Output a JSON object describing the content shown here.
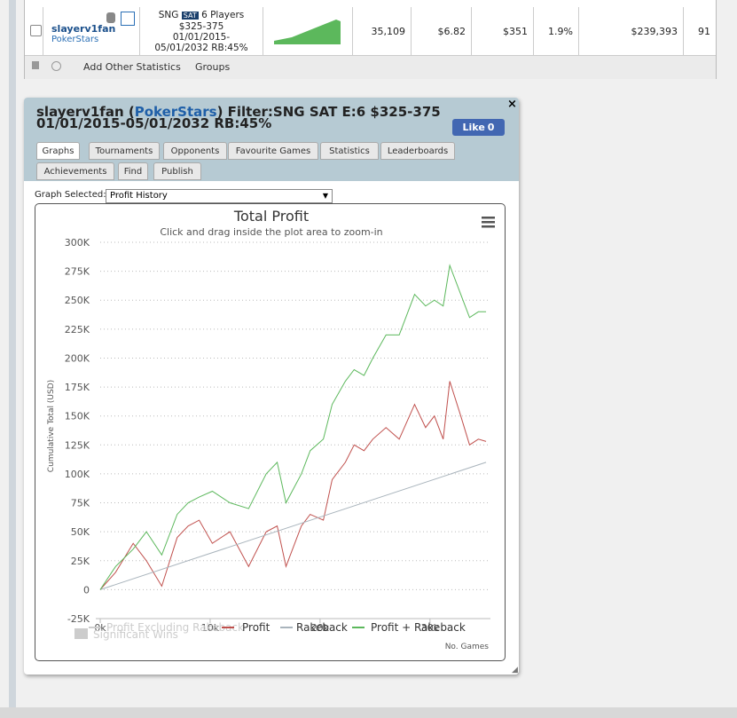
{
  "table": {
    "player": "slayerv1fan",
    "site": "PokerStars",
    "game": "SNG",
    "badge": "SAT",
    "players": "6 Players",
    "stakes": "$325-375",
    "dates": [
      "01/01/2015-",
      "05/01/2032 RB:45%"
    ],
    "cells": [
      "35,109",
      "$6.82",
      "$351",
      "1.9%",
      "$239,393",
      "91"
    ],
    "footer": [
      "Add Other Statistics",
      "Groups"
    ]
  },
  "panel": {
    "heading": [
      "slayerv1fan (",
      "PokerStars",
      ") Filter:SNG SAT E:6 $325-375 01/01/2015-05/01/2032 RB:45%"
    ],
    "like": "Like",
    "like_count": "0",
    "tabs": [
      "Graphs",
      "Tournaments",
      "Opponents",
      "Favourite Games",
      "Statistics",
      "Leaderboards",
      "Achievements",
      "Find",
      "Publish"
    ],
    "graph_label": "Graph Selected:",
    "graph_selected": "Profit History"
  },
  "chart_data": {
    "type": "line",
    "title": "Total Profit",
    "subtitle": "Click and drag inside the plot area to zoom-in",
    "y_label": "Cumulative Total (USD)",
    "x_label": "No. Games",
    "xlim": [
      0,
      35500
    ],
    "ylim": [
      -25000,
      300000
    ],
    "xticks": [
      {
        "value": 0,
        "label": "0k"
      },
      {
        "value": 10000,
        "label": "10k"
      },
      {
        "value": 20000,
        "label": "20k"
      },
      {
        "value": 30000,
        "label": "30k"
      }
    ],
    "yticks": [
      {
        "value": -25000,
        "label": "-25K"
      },
      0,
      {
        "value": 25000,
        "label": "25K"
      },
      {
        "value": 50000,
        "label": "50K"
      },
      {
        "value": 75000,
        "label": "75K"
      },
      {
        "value": 100000,
        "label": "100K"
      },
      {
        "value": 125000,
        "label": "125K"
      },
      {
        "value": 150000,
        "label": "150K"
      },
      {
        "value": 175000,
        "label": "175K"
      },
      {
        "value": 200000,
        "label": "200K"
      },
      {
        "value": 225000,
        "label": "225K"
      },
      {
        "value": 250000,
        "label": "250K"
      },
      {
        "value": 275000,
        "label": "275K"
      },
      {
        "value": 300000,
        "label": "300K"
      }
    ],
    "grid": true,
    "series": [
      {
        "name": "Profit Excluding Rakeback",
        "color": "#cccccc",
        "visible": false
      },
      {
        "name": "Profit",
        "color": "#c0504d",
        "visible": true,
        "x": [
          0,
          1400,
          3000,
          4200,
          5600,
          7000,
          8000,
          9000,
          10200,
          11800,
          13500,
          15100,
          16100,
          16900,
          18300,
          19100,
          20300,
          21100,
          22300,
          23100,
          24000,
          24800,
          26000,
          27200,
          28600,
          29600,
          30400,
          31200,
          31800,
          32800,
          33600,
          34400,
          35100
        ],
        "values": [
          0,
          15000,
          40000,
          25000,
          3000,
          45000,
          55000,
          60000,
          40000,
          50000,
          20000,
          50000,
          55000,
          20000,
          55000,
          65000,
          60000,
          95000,
          110000,
          125000,
          120000,
          130000,
          140000,
          130000,
          160000,
          140000,
          150000,
          130000,
          180000,
          150000,
          125000,
          130000,
          128000
        ]
      },
      {
        "name": "Rakeback",
        "color": "#a9b4bc",
        "visible": true,
        "x": [
          0,
          35100
        ],
        "values": [
          0,
          110000
        ]
      },
      {
        "name": "Profit + Rakeback",
        "color": "#5cb85c",
        "visible": true,
        "x": [
          0,
          1400,
          3000,
          4200,
          5600,
          7000,
          8000,
          9000,
          10200,
          11800,
          13500,
          15100,
          16100,
          16900,
          18300,
          19100,
          20300,
          21100,
          22300,
          23100,
          24000,
          24800,
          26000,
          27200,
          28600,
          29600,
          30400,
          31200,
          31800,
          32800,
          33600,
          34400,
          35100
        ],
        "values": [
          0,
          20000,
          35000,
          50000,
          30000,
          65000,
          75000,
          80000,
          85000,
          75000,
          70000,
          100000,
          110000,
          75000,
          100000,
          120000,
          130000,
          160000,
          180000,
          190000,
          185000,
          200000,
          220000,
          220000,
          255000,
          245000,
          250000,
          245000,
          280000,
          255000,
          235000,
          240000,
          240000
        ]
      }
    ],
    "extra_legend": {
      "name": "Significant Wins",
      "color": "#cccccc"
    }
  }
}
